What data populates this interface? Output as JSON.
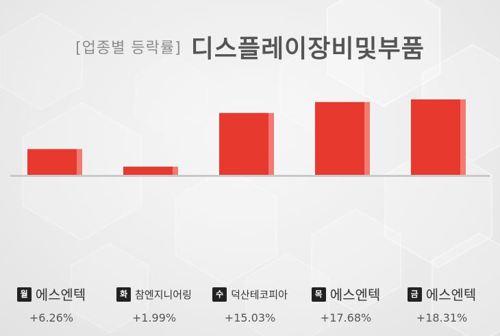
{
  "title": {
    "prefix": "[업종별 등락률]",
    "main": "디스플레이장비및부품"
  },
  "colors": {
    "bar_face": "#e8392f",
    "bar_side": "#f47a70",
    "baseline": "#c9c9c9"
  },
  "chart_data": {
    "type": "bar",
    "title": "디스플레이장비및부품",
    "subtitle": "[업종별 등락률]",
    "xlabel": "",
    "ylabel": "",
    "unit": "%",
    "ylim": [
      0,
      18.31
    ],
    "grid": false,
    "legend": "none",
    "categories": [
      "월",
      "화",
      "수",
      "목",
      "금"
    ],
    "series": [
      {
        "name": "",
        "values": [
          6.26,
          1.99,
          15.03,
          17.68,
          18.31
        ]
      }
    ],
    "items": [
      {
        "day": "월",
        "company": "에스엔텍",
        "change": "+6.26%",
        "value": 6.26
      },
      {
        "day": "화",
        "company": "참엔지니어링",
        "change": "+1.99%",
        "value": 1.99
      },
      {
        "day": "수",
        "company": "덕산테코피아",
        "change": "+15.03%",
        "value": 15.03
      },
      {
        "day": "목",
        "company": "에스엔텍",
        "change": "+17.68%",
        "value": 17.68
      },
      {
        "day": "금",
        "company": "에스엔텍",
        "change": "+18.31%",
        "value": 18.31
      }
    ]
  }
}
